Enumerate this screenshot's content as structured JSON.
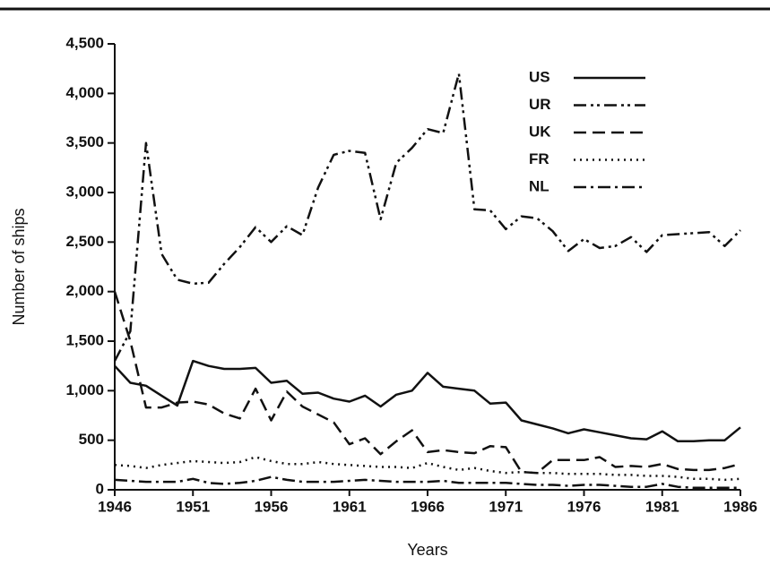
{
  "chart_data": {
    "type": "line",
    "xlabel": "Years",
    "ylabel": "Number of ships",
    "x": [
      1946,
      1947,
      1948,
      1949,
      1950,
      1951,
      1952,
      1953,
      1954,
      1955,
      1956,
      1957,
      1958,
      1959,
      1960,
      1961,
      1962,
      1963,
      1964,
      1965,
      1966,
      1967,
      1968,
      1969,
      1970,
      1971,
      1972,
      1973,
      1974,
      1975,
      1976,
      1977,
      1978,
      1979,
      1980,
      1981,
      1982,
      1983,
      1984,
      1985,
      1986
    ],
    "xlim": [
      1946,
      1986
    ],
    "xticks": [
      1946,
      1951,
      1956,
      1961,
      1966,
      1971,
      1976,
      1981,
      1986
    ],
    "ylim": [
      0,
      4500
    ],
    "yticks": [
      0,
      500,
      {
        "value": 1000,
        "label": "1,000"
      },
      {
        "value": 1500,
        "label": "1,500"
      },
      {
        "value": 2000,
        "label": "2,000"
      },
      {
        "value": 2500,
        "label": "2,500"
      },
      {
        "value": 3000,
        "label": "3,000"
      },
      {
        "value": 3500,
        "label": "3,500"
      },
      {
        "value": 4000,
        "label": "4,000"
      },
      {
        "value": 4500,
        "label": "4,500"
      }
    ],
    "legend": "upper right",
    "series": [
      {
        "name": "US",
        "color": "#111111",
        "linestyle": "solid",
        "values": [
          1250,
          1080,
          1050,
          950,
          850,
          1300,
          1250,
          1220,
          1220,
          1230,
          1080,
          1100,
          970,
          980,
          920,
          890,
          950,
          840,
          960,
          1000,
          1180,
          1040,
          1020,
          1000,
          870,
          880,
          700,
          660,
          620,
          570,
          610,
          580,
          550,
          520,
          510,
          590,
          490,
          490,
          500,
          500,
          630
        ]
      },
      {
        "name": "UR",
        "color": "#111111",
        "linestyle": "dash-dot-dot",
        "values": [
          1300,
          1600,
          3500,
          2380,
          2120,
          2080,
          2090,
          2280,
          2450,
          2650,
          2500,
          2660,
          2570,
          3050,
          3380,
          3420,
          3400,
          2730,
          3300,
          3450,
          3640,
          3600,
          4200,
          2830,
          2820,
          2630,
          2760,
          2740,
          2610,
          2410,
          2530,
          2440,
          2460,
          2550,
          2400,
          2570,
          2580,
          2590,
          2600,
          2460,
          2620
        ]
      },
      {
        "name": "UK",
        "color": "#111111",
        "linestyle": "dashed",
        "values": [
          2000,
          1500,
          830,
          830,
          880,
          890,
          860,
          770,
          720,
          1020,
          700,
          990,
          840,
          760,
          680,
          460,
          520,
          360,
          490,
          600,
          380,
          400,
          380,
          370,
          440,
          430,
          180,
          170,
          300,
          300,
          300,
          330,
          230,
          240,
          230,
          260,
          210,
          200,
          200,
          220,
          260
        ]
      },
      {
        "name": "FR",
        "color": "#111111",
        "linestyle": "dotted",
        "values": [
          250,
          240,
          220,
          250,
          270,
          290,
          280,
          270,
          280,
          330,
          290,
          260,
          260,
          280,
          260,
          250,
          240,
          230,
          230,
          220,
          270,
          230,
          200,
          220,
          190,
          170,
          180,
          170,
          170,
          160,
          160,
          160,
          150,
          150,
          140,
          140,
          130,
          110,
          110,
          100,
          110
        ]
      },
      {
        "name": "NL",
        "color": "#111111",
        "linestyle": "dash-dot",
        "values": [
          100,
          90,
          80,
          80,
          80,
          110,
          70,
          60,
          70,
          90,
          130,
          100,
          80,
          80,
          80,
          90,
          100,
          90,
          80,
          80,
          80,
          90,
          70,
          70,
          70,
          70,
          60,
          50,
          50,
          40,
          50,
          50,
          40,
          30,
          30,
          60,
          30,
          20,
          20,
          20,
          20
        ]
      }
    ]
  }
}
